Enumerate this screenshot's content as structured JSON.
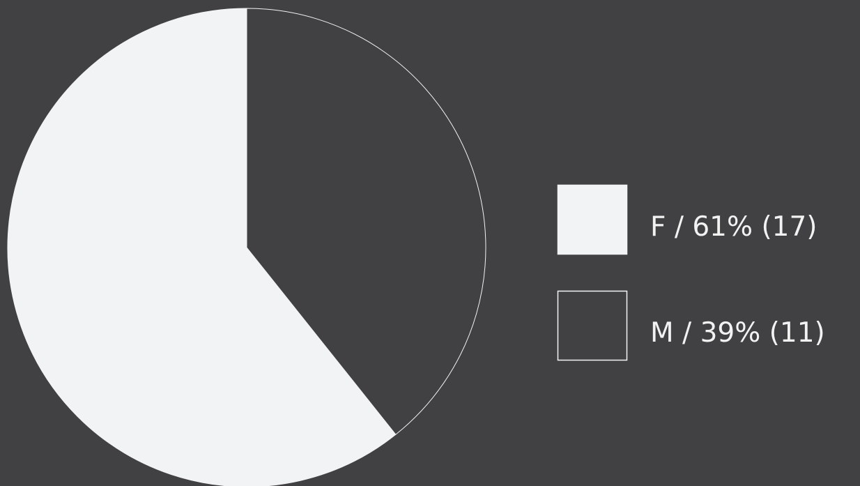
{
  "chart_data": {
    "type": "pie",
    "categories": [
      "F",
      "M"
    ],
    "values": [
      17,
      11
    ],
    "value_labels": [
      "F / 61% (17)",
      "M / 39% (11)"
    ],
    "colors": [
      "#f2f3f5",
      "#414143"
    ],
    "legend": "right"
  }
}
